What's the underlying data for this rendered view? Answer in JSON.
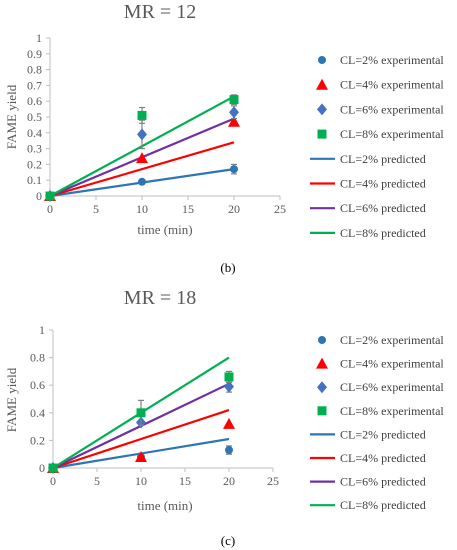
{
  "colors": {
    "blue": "#2e75b6",
    "red": "#ff0000",
    "purple": "#7030a0",
    "green": "#00b050",
    "diamond": "#4472c4",
    "axis": "#bfbfbf",
    "errorbar": "#808080"
  },
  "chart_data": [
    {
      "type": "scatter",
      "panel_label": "(b)",
      "title": "MR = 12",
      "xlabel": "time (min)",
      "ylabel": "FAME yield",
      "xlim": [
        0,
        25
      ],
      "ylim": [
        0,
        1
      ],
      "xticks": [
        "0",
        "5",
        "10",
        "15",
        "20",
        "25"
      ],
      "yticks": [
        "0",
        "0.1",
        "0.2",
        "0.3",
        "0.4",
        "0.5",
        "0.6",
        "0.7",
        "0.8",
        "0.9",
        "1"
      ],
      "legend_position": "right",
      "series": [
        {
          "name": "CL=2% experimental",
          "kind": "marker",
          "marker": "circle",
          "color": "#2e75b6",
          "x": [
            0,
            10,
            20
          ],
          "y": [
            0,
            0.09,
            0.17
          ],
          "err": [
            0,
            0,
            0.03
          ]
        },
        {
          "name": "CL=4% experimental",
          "kind": "marker",
          "marker": "triangle",
          "color": "#ff0000",
          "x": [
            0,
            10,
            20
          ],
          "y": [
            0,
            0.24,
            0.47
          ],
          "err": [
            0,
            0,
            0
          ]
        },
        {
          "name": "CL=6% experimental",
          "kind": "marker",
          "marker": "diamond",
          "color": "#4472c4",
          "x": [
            0,
            10,
            20
          ],
          "y": [
            0,
            0.39,
            0.53
          ],
          "err": [
            0,
            0.09,
            0.04
          ]
        },
        {
          "name": "CL=8% experimental",
          "kind": "marker",
          "marker": "square",
          "color": "#00b050",
          "x": [
            0,
            10,
            20
          ],
          "y": [
            0,
            0.51,
            0.61
          ],
          "err": [
            0,
            0.05,
            0.03
          ]
        },
        {
          "name": "CL=2% predicted",
          "kind": "line",
          "color": "#2e75b6",
          "x": [
            0,
            20
          ],
          "y": [
            0,
            0.17
          ]
        },
        {
          "name": "CL=4% predicted",
          "kind": "line",
          "color": "#ff0000",
          "x": [
            0,
            20
          ],
          "y": [
            0,
            0.34
          ]
        },
        {
          "name": "CL=6% predicted",
          "kind": "line",
          "color": "#7030a0",
          "x": [
            0,
            20
          ],
          "y": [
            0,
            0.49
          ]
        },
        {
          "name": "CL=8% predicted",
          "kind": "line",
          "color": "#00b050",
          "x": [
            0,
            20
          ],
          "y": [
            0,
            0.63
          ]
        }
      ]
    },
    {
      "type": "scatter",
      "panel_label": "(c)",
      "title": "MR = 18",
      "xlabel": "time (min)",
      "ylabel": "FAME yield",
      "xlim": [
        0,
        25
      ],
      "ylim": [
        0,
        1
      ],
      "xticks": [
        "0",
        "5",
        "10",
        "15",
        "20",
        "25"
      ],
      "yticks": [
        "0",
        "0.2",
        "0.4",
        "0.6",
        "0.8",
        "1"
      ],
      "legend_position": "right",
      "series": [
        {
          "name": "CL=2% experimental",
          "kind": "marker",
          "marker": "circle",
          "color": "#2e75b6",
          "x": [
            0,
            10,
            20
          ],
          "y": [
            0,
            0.08,
            0.13
          ],
          "err": [
            0,
            0,
            0.03
          ]
        },
        {
          "name": "CL=4% experimental",
          "kind": "marker",
          "marker": "triangle",
          "color": "#ff0000",
          "x": [
            0,
            10,
            20
          ],
          "y": [
            0,
            0.08,
            0.32
          ],
          "err": [
            0,
            0,
            0
          ]
        },
        {
          "name": "CL=6% experimental",
          "kind": "marker",
          "marker": "diamond",
          "color": "#4472c4",
          "x": [
            0,
            10,
            20
          ],
          "y": [
            0,
            0.33,
            0.59
          ],
          "err": [
            0,
            0,
            0.04
          ]
        },
        {
          "name": "CL=8% experimental",
          "kind": "marker",
          "marker": "square",
          "color": "#00b050",
          "x": [
            0,
            10,
            20
          ],
          "y": [
            0,
            0.4,
            0.66
          ],
          "err": [
            0,
            0.09,
            0.04
          ]
        },
        {
          "name": "CL=2% predicted",
          "kind": "line",
          "color": "#2e75b6",
          "x": [
            0,
            20
          ],
          "y": [
            0,
            0.21
          ]
        },
        {
          "name": "CL=4% predicted",
          "kind": "line",
          "color": "#ff0000",
          "x": [
            0,
            20
          ],
          "y": [
            0,
            0.42
          ]
        },
        {
          "name": "CL=6% predicted",
          "kind": "line",
          "color": "#7030a0",
          "x": [
            0,
            20
          ],
          "y": [
            0,
            0.61
          ]
        },
        {
          "name": "CL=8% predicted",
          "kind": "line",
          "color": "#00b050",
          "x": [
            0,
            20
          ],
          "y": [
            0,
            0.8
          ]
        }
      ]
    }
  ]
}
